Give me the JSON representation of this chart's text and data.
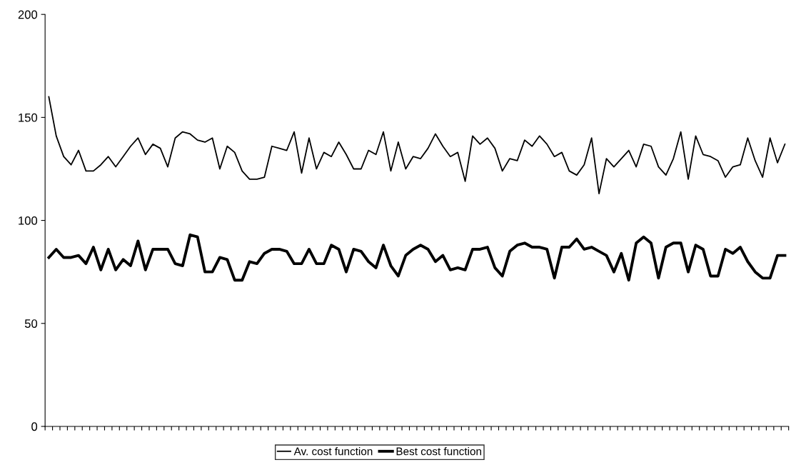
{
  "chart_data": {
    "type": "line",
    "categories": [
      null,
      null,
      null,
      null,
      null,
      null,
      null,
      null,
      null,
      null,
      null,
      null,
      null,
      null,
      null,
      null,
      null,
      null,
      null,
      null,
      null,
      null,
      null,
      null,
      null,
      null,
      null,
      null,
      null,
      null,
      null,
      null,
      null,
      null,
      null,
      null,
      null,
      null,
      null,
      null,
      null,
      null,
      null,
      null,
      null,
      null,
      null,
      null,
      null,
      null,
      null,
      null,
      null,
      null,
      null,
      null,
      null,
      null,
      null,
      null,
      null,
      null,
      null,
      null,
      null,
      null,
      null,
      null,
      null,
      null,
      null,
      null,
      null,
      null,
      null,
      null,
      null,
      null,
      null,
      null,
      null,
      null,
      null,
      null,
      null,
      null,
      null,
      null,
      null,
      null,
      null,
      null,
      null,
      null,
      null,
      null,
      null,
      null,
      null,
      null
    ],
    "series": [
      {
        "name": "Av. cost function",
        "color": "#000000",
        "values": [
          160,
          141,
          131,
          127,
          134,
          124,
          124,
          127,
          131,
          126,
          131,
          136,
          140,
          132,
          137,
          135,
          126,
          140,
          143,
          142,
          139,
          138,
          140,
          125,
          136,
          133,
          124,
          120,
          120,
          121,
          136,
          135,
          134,
          143,
          123,
          140,
          125,
          133,
          131,
          138,
          132,
          125,
          125,
          134,
          132,
          143,
          124,
          138,
          125,
          131,
          130,
          135,
          142,
          136,
          131,
          133,
          119,
          141,
          137,
          140,
          135,
          124,
          130,
          129,
          139,
          136,
          141,
          137,
          131,
          133,
          124,
          122,
          127,
          140,
          113,
          130,
          126,
          130,
          134,
          126,
          137,
          136,
          126,
          122,
          130,
          143,
          120,
          141,
          132,
          131,
          129,
          121,
          126,
          127,
          140,
          129,
          121,
          140,
          128,
          137
        ]
      },
      {
        "name": "Best cost function",
        "color": "#000000",
        "values": [
          82,
          86,
          82,
          82,
          83,
          79,
          87,
          76,
          86,
          76,
          81,
          78,
          90,
          76,
          86,
          86,
          86,
          79,
          78,
          93,
          92,
          75,
          75,
          82,
          81,
          71,
          71,
          80,
          79,
          84,
          86,
          86,
          85,
          79,
          79,
          86,
          79,
          79,
          88,
          86,
          75,
          86,
          85,
          80,
          77,
          88,
          78,
          73,
          83,
          86,
          88,
          86,
          80,
          83,
          76,
          77,
          76,
          86,
          86,
          87,
          77,
          73,
          85,
          88,
          89,
          87,
          87,
          86,
          72,
          87,
          87,
          91,
          86,
          87,
          85,
          83,
          75,
          84,
          71,
          89,
          92,
          89,
          72,
          87,
          89,
          89,
          75,
          88,
          86,
          73,
          73,
          86,
          84,
          87,
          80,
          75,
          72,
          72,
          83,
          83
        ]
      }
    ],
    "ylim": [
      0,
      200
    ],
    "yticks": [
      0,
      50,
      100,
      150,
      200
    ],
    "tick_labels": "y",
    "grid": false,
    "legend": "bottom",
    "marker": "none",
    "line_style": "solid"
  }
}
